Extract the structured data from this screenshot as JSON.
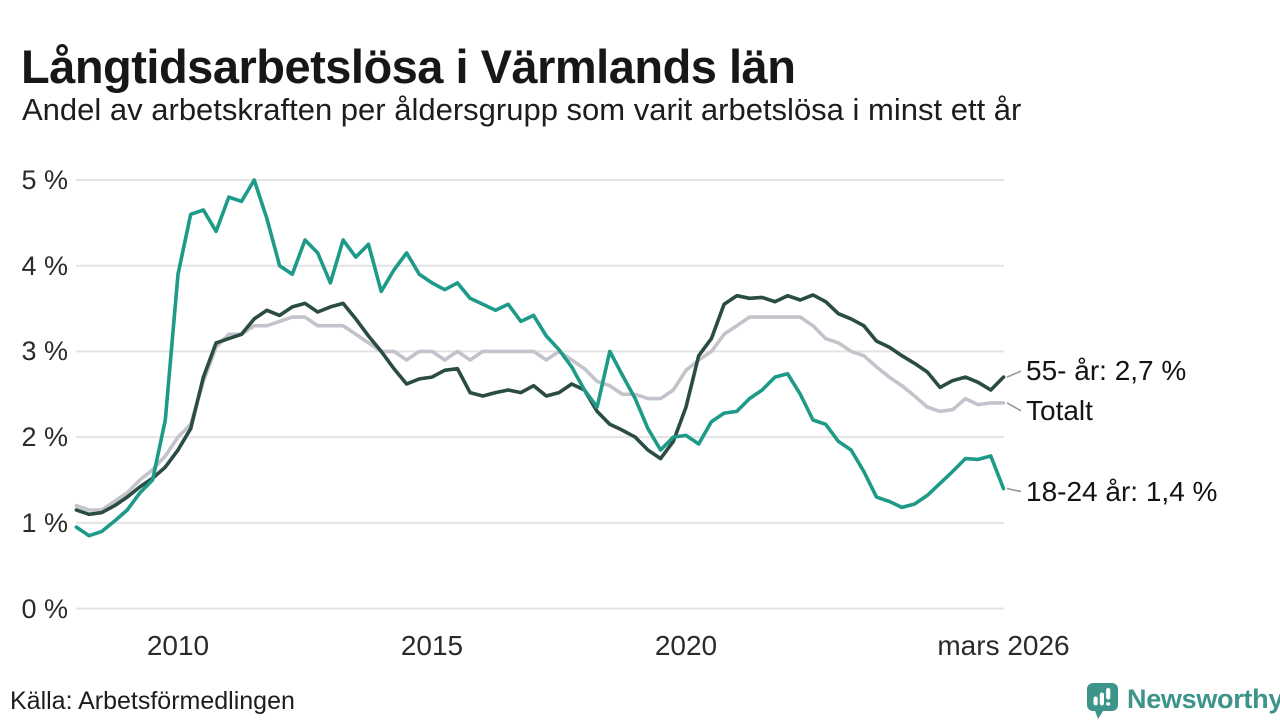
{
  "header": {
    "title": "Långtidsarbetslösa i Värmlands län",
    "subtitle": "Andel av arbetskraften per åldersgrupp som varit arbetslösa i minst ett år"
  },
  "footer": {
    "source": "Källa: Arbetsförmedlingen",
    "brand": "Newsworthy"
  },
  "colors": {
    "accent_teal": "#1d9a88",
    "dark_green": "#2b4c43",
    "light_gray": "#c4c3cb",
    "gridline": "#e3e3e3",
    "connector": "#999999",
    "logo": "#3d948b"
  },
  "chart_data": {
    "type": "line",
    "title": "Långtidsarbetslösa i Värmlands län",
    "subtitle": "Andel av arbetskraften per åldersgrupp som varit arbetslösa i minst ett år",
    "x_start": 2008.0,
    "x_step": 0.25,
    "x_end": 2026.25,
    "ylim": [
      0,
      5
    ],
    "grid": true,
    "y_axis": {
      "ticks": [
        {
          "value": 0,
          "label": "0 %"
        },
        {
          "value": 1,
          "label": "1 %"
        },
        {
          "value": 2,
          "label": "2 %"
        },
        {
          "value": 3,
          "label": "3 %"
        },
        {
          "value": 4,
          "label": "4 %"
        },
        {
          "value": 5,
          "label": "5 %"
        }
      ]
    },
    "x_axis": {
      "ticks": [
        {
          "year": 2010,
          "label": "2010"
        },
        {
          "year": 2015,
          "label": "2015"
        },
        {
          "year": 2020,
          "label": "2020"
        },
        {
          "year": 2026.25,
          "label": "mars 2026"
        }
      ]
    },
    "series": [
      {
        "id": "55-ar",
        "name": "55- år",
        "end_label": "55- år: 2,7 %",
        "end_value": 2.7,
        "color": "#2b4c43",
        "values": [
          1.15,
          1.1,
          1.12,
          1.2,
          1.3,
          1.42,
          1.52,
          1.65,
          1.85,
          2.1,
          2.7,
          3.1,
          3.15,
          3.2,
          3.38,
          3.48,
          3.42,
          3.52,
          3.56,
          3.46,
          3.52,
          3.56,
          3.38,
          3.18,
          3.0,
          2.8,
          2.62,
          2.68,
          2.7,
          2.78,
          2.8,
          2.52,
          2.48,
          2.52,
          2.55,
          2.52,
          2.6,
          2.48,
          2.52,
          2.62,
          2.55,
          2.3,
          2.15,
          2.08,
          2.0,
          1.85,
          1.75,
          1.95,
          2.35,
          2.95,
          3.15,
          3.55,
          3.65,
          3.62,
          3.63,
          3.58,
          3.65,
          3.6,
          3.66,
          3.58,
          3.44,
          3.38,
          3.3,
          3.12,
          3.05,
          2.95,
          2.86,
          2.76,
          2.58,
          2.66,
          2.7,
          2.64,
          2.55,
          2.7
        ]
      },
      {
        "id": "totalt",
        "name": "Totalt",
        "end_label": "Totalt",
        "end_value": 2.4,
        "color": "#c4c3cb",
        "values": [
          1.2,
          1.15,
          1.15,
          1.25,
          1.35,
          1.5,
          1.62,
          1.78,
          2.0,
          2.15,
          2.65,
          3.05,
          3.2,
          3.2,
          3.3,
          3.3,
          3.35,
          3.4,
          3.4,
          3.3,
          3.3,
          3.3,
          3.2,
          3.1,
          3.0,
          3.0,
          2.9,
          3.0,
          3.0,
          2.9,
          3.0,
          2.9,
          3.0,
          3.0,
          3.0,
          3.0,
          3.0,
          2.9,
          3.0,
          2.9,
          2.8,
          2.65,
          2.6,
          2.5,
          2.5,
          2.45,
          2.45,
          2.55,
          2.78,
          2.9,
          3.0,
          3.2,
          3.3,
          3.4,
          3.4,
          3.4,
          3.4,
          3.4,
          3.3,
          3.15,
          3.1,
          3.0,
          2.95,
          2.82,
          2.7,
          2.6,
          2.48,
          2.35,
          2.3,
          2.32,
          2.45,
          2.38,
          2.4,
          2.4
        ]
      },
      {
        "id": "18-24-ar",
        "name": "18-24 år",
        "end_label": "18-24 år: 1,4 %",
        "end_value": 1.4,
        "color": "#1d9a88",
        "values": [
          0.95,
          0.85,
          0.9,
          1.02,
          1.15,
          1.35,
          1.5,
          2.2,
          3.9,
          4.6,
          4.65,
          4.4,
          4.8,
          4.75,
          5.0,
          4.55,
          4.0,
          3.9,
          4.3,
          4.15,
          3.8,
          4.3,
          4.1,
          4.25,
          3.7,
          3.95,
          4.15,
          3.9,
          3.8,
          3.72,
          3.8,
          3.62,
          3.55,
          3.48,
          3.55,
          3.35,
          3.42,
          3.18,
          3.02,
          2.82,
          2.55,
          2.35,
          3.0,
          2.72,
          2.45,
          2.1,
          1.85,
          2.0,
          2.02,
          1.92,
          2.18,
          2.28,
          2.3,
          2.45,
          2.55,
          2.7,
          2.74,
          2.5,
          2.2,
          2.15,
          1.95,
          1.85,
          1.6,
          1.3,
          1.25,
          1.18,
          1.22,
          1.32,
          1.46,
          1.6,
          1.75,
          1.74,
          1.78,
          1.4
        ]
      }
    ]
  }
}
